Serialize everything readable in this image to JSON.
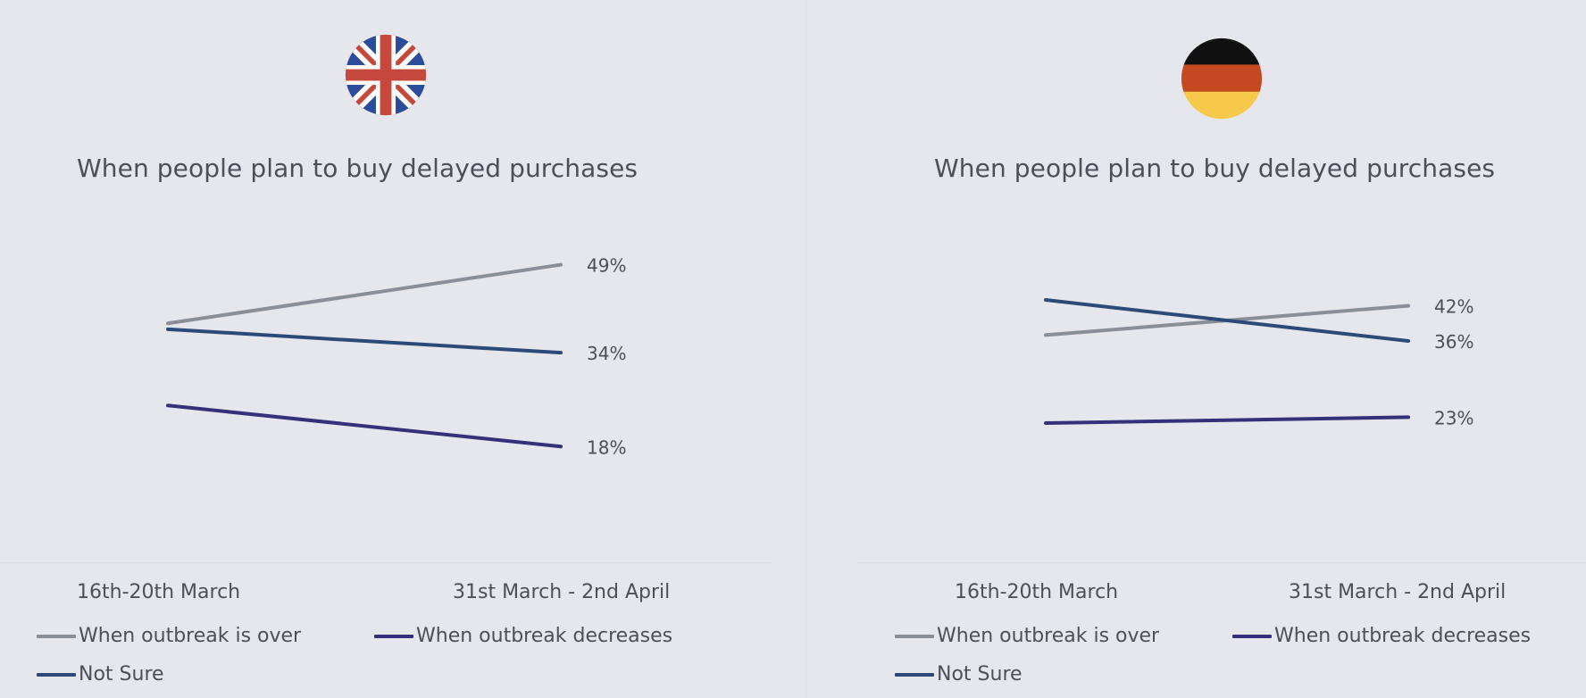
{
  "colors": {
    "over": "#8a8e99",
    "decreases": "#34317a",
    "not_sure": "#2c4a78"
  },
  "chart_data": [
    {
      "type": "line",
      "flag": "uk-flag",
      "title": "When people plan to buy delayed purchases",
      "x": [
        "16th-20th March",
        "31st March - 2nd April"
      ],
      "series": [
        {
          "name": "When outbreak is over",
          "values": [
            39,
            49
          ],
          "end_label": "49%",
          "color_key": "over"
        },
        {
          "name": "Not Sure",
          "values": [
            38,
            34
          ],
          "end_label": "34%",
          "color_key": "not_sure"
        },
        {
          "name": "When outbreak decreases",
          "values": [
            25,
            18
          ],
          "end_label": "18%",
          "color_key": "decreases"
        }
      ],
      "legend": [
        "When outbreak is over",
        "When outbreak decreases",
        "Not Sure"
      ]
    },
    {
      "type": "line",
      "flag": "germany-flag",
      "title": "When people plan to buy delayed purchases",
      "x": [
        "16th-20th March",
        "31st March - 2nd April"
      ],
      "series": [
        {
          "name": "When outbreak is over",
          "values": [
            37,
            42
          ],
          "end_label": "42%",
          "color_key": "over"
        },
        {
          "name": "Not Sure",
          "values": [
            43,
            36
          ],
          "end_label": "36%",
          "color_key": "not_sure"
        },
        {
          "name": "When outbreak decreases",
          "values": [
            22,
            23
          ],
          "end_label": "23%",
          "color_key": "decreases"
        }
      ],
      "legend": [
        "When outbreak is over",
        "When outbreak decreases",
        "Not Sure"
      ]
    }
  ]
}
